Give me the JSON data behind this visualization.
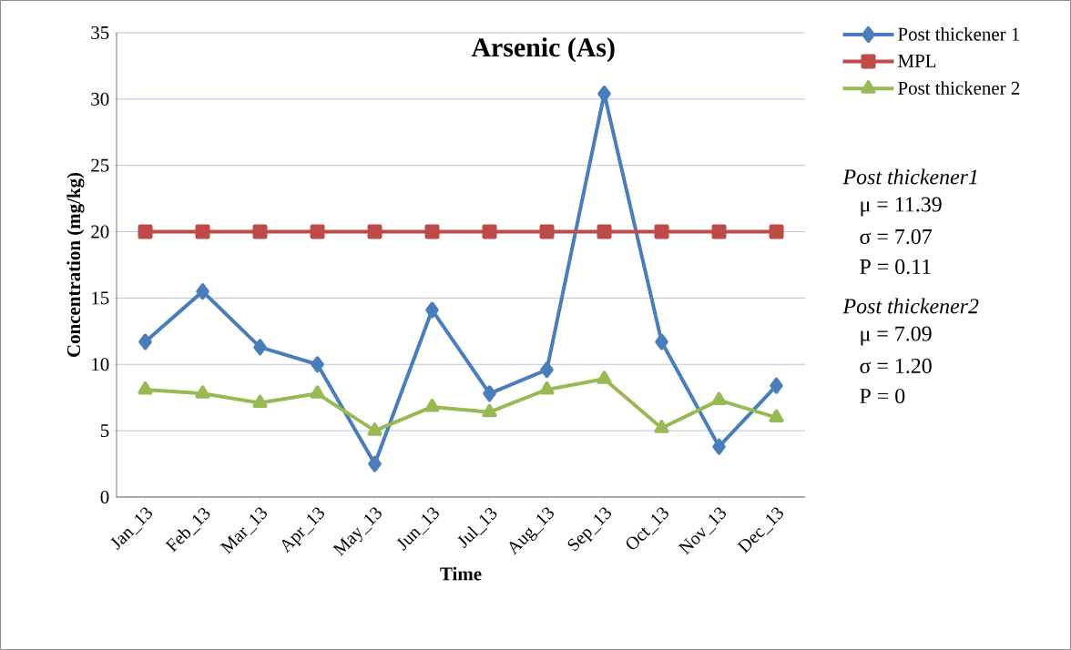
{
  "chart_data": {
    "type": "line",
    "title": "Arsenic (As)",
    "xlabel": "Time",
    "ylabel": "Concentration (mg/kg)",
    "categories": [
      "Jan_13",
      "Feb_13",
      "Mar_13",
      "Apr_13",
      "May_13",
      "Jun_13",
      "Jul_13",
      "Aug_13",
      "Sep_13",
      "Oct_13",
      "Nov_13",
      "Dec_13"
    ],
    "series": [
      {
        "name": "Post thickener 1",
        "color": "#4a7ebb",
        "marker": "diamond",
        "values": [
          11.7,
          15.5,
          11.3,
          10.0,
          2.5,
          14.1,
          7.8,
          9.6,
          30.4,
          11.7,
          3.8,
          8.4
        ]
      },
      {
        "name": "MPL",
        "color": "#be4b48",
        "marker": "square",
        "values": [
          20,
          20,
          20,
          20,
          20,
          20,
          20,
          20,
          20,
          20,
          20,
          20
        ]
      },
      {
        "name": "Post thickener 2",
        "color": "#98b954",
        "marker": "triangle",
        "values": [
          8.1,
          7.8,
          7.1,
          7.8,
          5.0,
          6.8,
          6.4,
          8.1,
          8.9,
          5.2,
          7.3,
          6.0
        ]
      }
    ],
    "ylim": [
      0,
      35
    ],
    "yticks": [
      0,
      5,
      10,
      15,
      20,
      25,
      30,
      35
    ],
    "grid": "y",
    "legend": "right",
    "line_style": "solid",
    "annotations": [
      "Post thickener1",
      "μ = 11.39",
      "σ = 7.07",
      "P = 0.11",
      "Post thickener2",
      "μ = 7.09",
      "σ = 1.20",
      "P = 0"
    ]
  }
}
